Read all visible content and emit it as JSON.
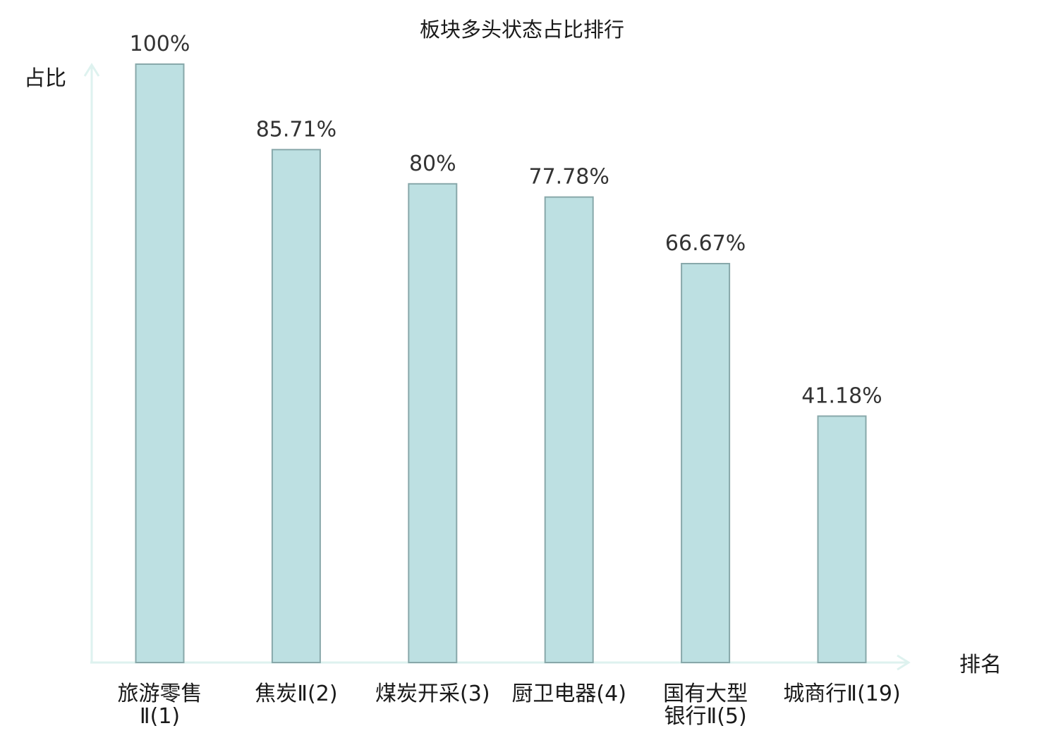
{
  "colors": {
    "bar_fill": "#bde0e2",
    "bar_stroke": "#88a8aa",
    "axis": "#def2ef",
    "value_text": "#333333",
    "label_text": "#1a1a1a",
    "highlight_text": "#e01010"
  },
  "chart_data": {
    "type": "bar",
    "title": "板块多头状态占比排行",
    "xlabel": "排名",
    "ylabel": "占比",
    "ylim": [
      0,
      100
    ],
    "grid": false,
    "categories": [
      [
        "旅游零售",
        "Ⅱ(1)"
      ],
      [
        "焦炭Ⅱ(2)"
      ],
      [
        "煤炭开采(3)"
      ],
      [
        "厨卫电器(4)"
      ],
      [
        "国有大型",
        "银行Ⅱ(5)"
      ],
      [
        "城商行Ⅱ(19)"
      ]
    ],
    "values": [
      100,
      85.71,
      80,
      77.78,
      66.67,
      41.18
    ],
    "value_labels": [
      "100%",
      "85.71%",
      "80%",
      "77.78%",
      "66.67%",
      "41.18%"
    ],
    "highlighted_category_index": 5
  }
}
